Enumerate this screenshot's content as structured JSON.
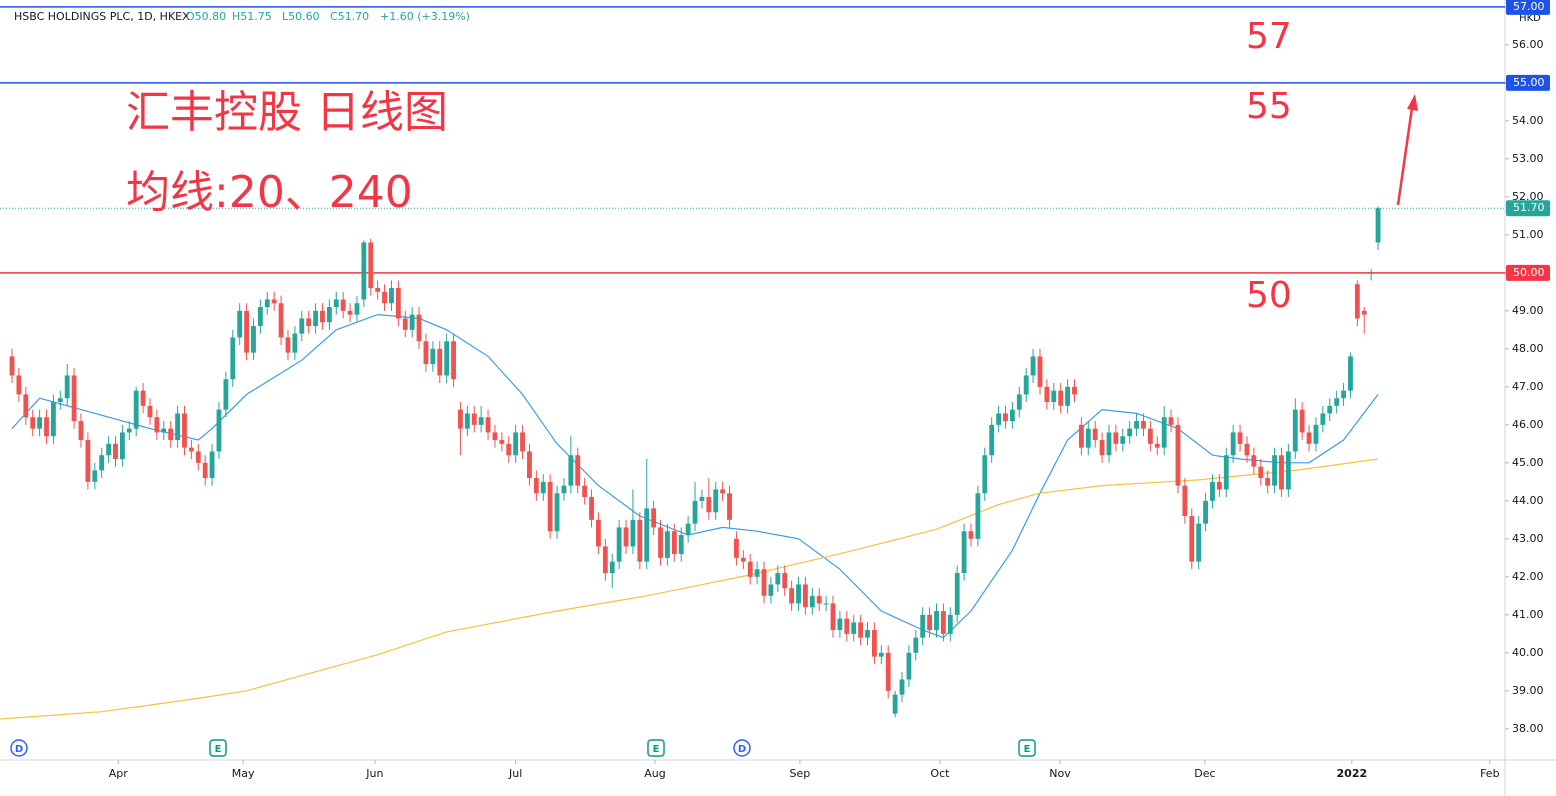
{
  "chart_data": {
    "type": "candlestick",
    "header": {
      "symbol": "HSBC HOLDINGS PLC, 1D, HKEX",
      "open": "O50.80",
      "high": "H51.75",
      "low": "L50.60",
      "close": "C51.70",
      "change": "+1.60 (+3.19%)"
    },
    "annotations": [
      "57",
      "55",
      "50",
      "汇丰控股 日线图",
      "均线:20、240"
    ],
    "currency": "HKD",
    "up_color": "#26a69a",
    "down_color": "#ef5350",
    "xlim": [
      -1.74,
      216.4
    ],
    "ylim": [
      37.18,
      57.18
    ],
    "yticks": [
      {
        "value": 38,
        "label": "38.00"
      },
      {
        "value": 39,
        "label": "39.00"
      },
      {
        "value": 40,
        "label": "40.00"
      },
      {
        "value": 41,
        "label": "41.00"
      },
      {
        "value": 42,
        "label": "42.00"
      },
      {
        "value": 43,
        "label": "43.00"
      },
      {
        "value": 44,
        "label": "44.00"
      },
      {
        "value": 45,
        "label": "45.00"
      },
      {
        "value": 46,
        "label": "46.00"
      },
      {
        "value": 47,
        "label": "47.00"
      },
      {
        "value": 48,
        "label": "48.00"
      },
      {
        "value": 49,
        "label": "49.00"
      },
      {
        "value": 50,
        "label": "50.00"
      },
      {
        "value": 51,
        "label": "51.00"
      },
      {
        "value": 52,
        "label": "52.00"
      },
      {
        "value": 53,
        "label": "53.00"
      },
      {
        "value": 54,
        "label": "54.00"
      },
      {
        "value": 55,
        "label": "55.00"
      },
      {
        "value": 56,
        "label": "56.00"
      }
    ],
    "xticks": [
      {
        "value": 15.4,
        "label": "Apr"
      },
      {
        "value": 33.5,
        "label": "May"
      },
      {
        "value": 52.6,
        "label": "Jun"
      },
      {
        "value": 73.0,
        "label": "Jul"
      },
      {
        "value": 93.2,
        "label": "Aug"
      },
      {
        "value": 114.2,
        "label": "Sep"
      },
      {
        "value": 134.5,
        "label": "Oct"
      },
      {
        "value": 151.9,
        "label": "Nov"
      },
      {
        "value": 172.9,
        "label": "Dec"
      },
      {
        "value": 194.2,
        "label": "2022"
      },
      {
        "value": 214.2,
        "label": "Feb"
      }
    ],
    "hlines": [
      {
        "value": 57,
        "label": "57.00",
        "color": "#1e53e5"
      },
      {
        "value": 55,
        "label": "55.00",
        "color": "#1e53e5"
      },
      {
        "value": 50,
        "label": "50.00",
        "color": "#f23645"
      }
    ],
    "last_price": {
      "value": 51.7,
      "label": "51.70",
      "color": "#26a69a"
    },
    "events": [
      "D",
      "E",
      "E",
      "D",
      "E"
    ],
    "series": [
      {
        "name": "MA20",
        "color": "#3d9be9",
        "x": [
          0,
          4,
          10,
          20,
          27,
          29,
          34,
          42,
          47,
          53,
          59,
          63,
          69,
          74,
          79,
          85,
          91,
          98,
          103,
          108,
          114,
          120,
          126,
          132,
          135,
          139,
          145,
          149,
          153,
          158,
          163,
          169,
          174,
          178,
          184,
          188,
          193,
          198
        ],
        "values": [
          45.9,
          46.7,
          46.4,
          45.9,
          45.6,
          45.9,
          46.8,
          47.7,
          48.5,
          48.9,
          48.8,
          48.5,
          47.8,
          46.8,
          45.5,
          44.4,
          43.6,
          43.1,
          43.3,
          43.2,
          43.0,
          42.2,
          41.1,
          40.6,
          40.4,
          41.1,
          42.7,
          44.2,
          45.6,
          46.4,
          46.3,
          45.9,
          45.2,
          45.1,
          45.0,
          45.0,
          45.6,
          46.8
        ]
      },
      {
        "name": "MA240",
        "color": "#f5c242",
        "x": [
          -1.7,
          13,
          27,
          34,
          42,
          53,
          63,
          79,
          92,
          107,
          121,
          134,
          143,
          149,
          158,
          172,
          186,
          198
        ],
        "values": [
          38.26,
          38.45,
          38.8,
          39.0,
          39.4,
          39.95,
          40.55,
          41.1,
          41.5,
          42.05,
          42.65,
          43.25,
          43.9,
          44.2,
          44.4,
          44.55,
          44.8,
          45.1
        ]
      }
    ],
    "candles": [
      [
        47.8,
        48.0,
        47.1,
        47.3
      ],
      [
        47.3,
        47.5,
        46.6,
        46.8
      ],
      [
        46.8,
        47.0,
        46.0,
        46.2
      ],
      [
        46.2,
        46.4,
        45.7,
        45.9
      ],
      [
        45.9,
        46.4,
        45.7,
        46.2
      ],
      [
        46.2,
        46.4,
        45.5,
        45.7
      ],
      [
        45.7,
        46.8,
        45.5,
        46.6
      ],
      [
        46.6,
        46.9,
        46.4,
        46.7
      ],
      [
        46.7,
        47.6,
        46.5,
        47.3
      ],
      [
        47.3,
        47.5,
        45.9,
        46.1
      ],
      [
        46.1,
        46.3,
        45.4,
        45.6
      ],
      [
        45.6,
        45.8,
        44.3,
        44.5
      ],
      [
        44.5,
        45.0,
        44.3,
        44.8
      ],
      [
        44.8,
        45.4,
        44.6,
        45.2
      ],
      [
        45.2,
        45.7,
        45.0,
        45.5
      ],
      [
        45.5,
        45.7,
        44.9,
        45.1
      ],
      [
        45.1,
        46.0,
        44.9,
        45.8
      ],
      [
        45.8,
        46.1,
        45.6,
        45.9
      ],
      [
        45.9,
        47.0,
        45.7,
        46.9
      ],
      [
        46.9,
        47.1,
        46.3,
        46.5
      ],
      [
        46.5,
        46.7,
        46.0,
        46.2
      ],
      [
        46.2,
        46.4,
        45.6,
        45.8
      ],
      [
        45.8,
        46.1,
        45.6,
        45.9
      ],
      [
        45.9,
        46.1,
        45.4,
        45.6
      ],
      [
        45.6,
        46.5,
        45.4,
        46.3
      ],
      [
        46.3,
        46.5,
        45.2,
        45.4
      ],
      [
        45.4,
        45.6,
        45.1,
        45.3
      ],
      [
        45.3,
        45.5,
        44.8,
        45.0
      ],
      [
        45.0,
        45.2,
        44.4,
        44.6
      ],
      [
        44.6,
        45.5,
        44.4,
        45.3
      ],
      [
        45.3,
        46.6,
        45.1,
        46.4
      ],
      [
        46.4,
        47.4,
        46.2,
        47.2
      ],
      [
        47.2,
        48.5,
        47.0,
        48.3
      ],
      [
        48.3,
        49.2,
        48.1,
        49.0
      ],
      [
        49.0,
        49.2,
        47.7,
        47.9
      ],
      [
        47.9,
        48.8,
        47.7,
        48.6
      ],
      [
        48.6,
        49.3,
        48.4,
        49.1
      ],
      [
        49.1,
        49.5,
        48.9,
        49.3
      ],
      [
        49.3,
        49.5,
        49.0,
        49.2
      ],
      [
        49.2,
        49.4,
        48.1,
        48.3
      ],
      [
        48.3,
        48.5,
        47.7,
        47.9
      ],
      [
        47.9,
        48.6,
        47.7,
        48.4
      ],
      [
        48.4,
        49.0,
        48.2,
        48.8
      ],
      [
        48.8,
        49.0,
        48.4,
        48.6
      ],
      [
        48.6,
        49.2,
        48.4,
        49.0
      ],
      [
        49.0,
        49.2,
        48.5,
        48.7
      ],
      [
        48.7,
        49.3,
        48.5,
        49.1
      ],
      [
        49.1,
        49.5,
        48.9,
        49.3
      ],
      [
        49.3,
        49.5,
        48.8,
        49.0
      ],
      [
        49.0,
        49.2,
        48.7,
        48.9
      ],
      [
        48.9,
        49.4,
        48.7,
        49.2
      ],
      [
        49.3,
        50.85,
        49.1,
        50.8
      ],
      [
        50.8,
        50.9,
        49.4,
        49.6
      ],
      [
        49.6,
        49.8,
        49.3,
        49.5
      ],
      [
        49.5,
        49.7,
        49.0,
        49.2
      ],
      [
        49.2,
        49.8,
        49.0,
        49.6
      ],
      [
        49.6,
        49.8,
        48.6,
        48.8
      ],
      [
        48.8,
        49.0,
        48.3,
        48.5
      ],
      [
        48.5,
        49.1,
        48.3,
        48.9
      ],
      [
        48.9,
        49.1,
        48.0,
        48.2
      ],
      [
        48.2,
        48.4,
        47.4,
        47.6
      ],
      [
        47.6,
        48.2,
        47.4,
        48.0
      ],
      [
        48.0,
        48.2,
        47.1,
        47.3
      ],
      [
        47.3,
        48.4,
        47.1,
        48.2
      ],
      [
        48.2,
        48.4,
        47.0,
        47.2
      ],
      [
        46.4,
        46.6,
        45.2,
        45.9
      ],
      [
        45.9,
        46.5,
        45.7,
        46.3
      ],
      [
        46.3,
        46.5,
        45.8,
        46.0
      ],
      [
        46.0,
        46.5,
        45.8,
        46.2
      ],
      [
        46.2,
        46.4,
        45.6,
        45.8
      ],
      [
        45.8,
        46.0,
        45.4,
        45.6
      ],
      [
        45.6,
        45.8,
        45.3,
        45.5
      ],
      [
        45.5,
        45.7,
        45.0,
        45.2
      ],
      [
        45.2,
        46.0,
        45.0,
        45.8
      ],
      [
        45.8,
        46.0,
        45.1,
        45.3
      ],
      [
        45.3,
        45.5,
        44.4,
        44.6
      ],
      [
        44.6,
        44.8,
        44.0,
        44.2
      ],
      [
        44.2,
        44.7,
        44.0,
        44.5
      ],
      [
        44.5,
        44.7,
        43.0,
        43.2
      ],
      [
        43.2,
        44.4,
        43.0,
        44.2
      ],
      [
        44.2,
        44.6,
        44.0,
        44.4
      ],
      [
        44.4,
        45.7,
        44.2,
        45.2
      ],
      [
        45.2,
        45.4,
        44.2,
        44.4
      ],
      [
        44.4,
        44.6,
        43.9,
        44.1
      ],
      [
        44.1,
        44.3,
        43.3,
        43.5
      ],
      [
        43.5,
        43.7,
        42.6,
        42.8
      ],
      [
        42.8,
        43.0,
        41.9,
        42.1
      ],
      [
        42.1,
        42.6,
        41.7,
        42.4
      ],
      [
        42.4,
        43.5,
        42.2,
        43.3
      ],
      [
        43.3,
        43.5,
        42.6,
        42.8
      ],
      [
        42.8,
        44.3,
        42.6,
        43.5
      ],
      [
        43.5,
        43.7,
        42.2,
        42.4
      ],
      [
        42.4,
        45.1,
        42.2,
        43.8
      ],
      [
        43.8,
        44.0,
        43.1,
        43.3
      ],
      [
        43.3,
        43.5,
        42.3,
        42.5
      ],
      [
        42.5,
        43.4,
        42.3,
        43.2
      ],
      [
        43.2,
        43.4,
        42.4,
        42.6
      ],
      [
        42.6,
        43.3,
        42.4,
        43.1
      ],
      [
        43.1,
        43.6,
        42.9,
        43.4
      ],
      [
        43.4,
        44.5,
        43.2,
        44.0
      ],
      [
        44.0,
        44.3,
        43.8,
        44.1
      ],
      [
        44.1,
        44.6,
        43.5,
        43.7
      ],
      [
        43.7,
        44.5,
        43.5,
        44.3
      ],
      [
        44.3,
        44.5,
        44.0,
        44.2
      ],
      [
        44.2,
        44.4,
        43.3,
        43.5
      ],
      [
        43.0,
        43.2,
        42.3,
        42.5
      ],
      [
        42.5,
        42.7,
        42.2,
        42.4
      ],
      [
        42.4,
        42.6,
        41.8,
        42.0
      ],
      [
        42.0,
        42.4,
        41.8,
        42.2
      ],
      [
        42.2,
        42.4,
        41.3,
        41.5
      ],
      [
        41.5,
        42.0,
        41.3,
        41.8
      ],
      [
        41.8,
        42.3,
        41.6,
        42.1
      ],
      [
        42.1,
        42.3,
        41.5,
        41.7
      ],
      [
        41.7,
        41.9,
        41.1,
        41.3
      ],
      [
        41.3,
        42.0,
        41.1,
        41.8
      ],
      [
        41.8,
        42.0,
        41.0,
        41.2
      ],
      [
        41.2,
        41.7,
        41.0,
        41.5
      ],
      [
        41.5,
        41.7,
        41.1,
        41.3
      ],
      [
        41.3,
        41.5,
        41.1,
        41.3
      ],
      [
        41.3,
        41.5,
        40.4,
        40.6
      ],
      [
        40.6,
        41.1,
        40.4,
        40.9
      ],
      [
        40.9,
        41.1,
        40.3,
        40.5
      ],
      [
        40.5,
        41.0,
        40.3,
        40.8
      ],
      [
        40.8,
        41.0,
        40.2,
        40.4
      ],
      [
        40.4,
        40.8,
        40.2,
        40.6
      ],
      [
        40.6,
        40.8,
        39.7,
        39.9
      ],
      [
        39.9,
        40.2,
        39.7,
        40.0
      ],
      [
        40.0,
        40.2,
        38.8,
        39.0
      ],
      [
        38.4,
        39.0,
        38.3,
        38.9
      ],
      [
        38.9,
        39.5,
        38.7,
        39.3
      ],
      [
        39.3,
        40.2,
        39.1,
        40.0
      ],
      [
        40.0,
        40.6,
        39.8,
        40.4
      ],
      [
        40.4,
        41.2,
        40.2,
        41.0
      ],
      [
        41.0,
        41.2,
        40.4,
        40.6
      ],
      [
        40.6,
        41.3,
        40.4,
        41.1
      ],
      [
        41.1,
        41.3,
        40.3,
        40.5
      ],
      [
        40.5,
        41.2,
        40.3,
        41.0
      ],
      [
        41.0,
        42.3,
        40.8,
        42.1
      ],
      [
        42.1,
        43.4,
        41.9,
        43.2
      ],
      [
        43.2,
        43.4,
        42.8,
        43.0
      ],
      [
        43.0,
        44.4,
        42.8,
        44.2
      ],
      [
        44.2,
        45.4,
        44.0,
        45.2
      ],
      [
        45.2,
        46.2,
        45.0,
        46.0
      ],
      [
        46.0,
        46.5,
        45.8,
        46.3
      ],
      [
        46.3,
        46.5,
        45.9,
        46.1
      ],
      [
        46.1,
        46.6,
        45.9,
        46.4
      ],
      [
        46.4,
        47.0,
        46.2,
        46.8
      ],
      [
        46.8,
        47.5,
        46.6,
        47.3
      ],
      [
        47.3,
        48.0,
        47.1,
        47.8
      ],
      [
        47.8,
        48.0,
        46.8,
        47.0
      ],
      [
        47.0,
        47.2,
        46.4,
        46.6
      ],
      [
        46.6,
        47.1,
        46.4,
        46.9
      ],
      [
        46.9,
        47.1,
        46.3,
        46.5
      ],
      [
        46.5,
        47.2,
        46.3,
        47.0
      ],
      [
        47.0,
        47.2,
        46.6,
        46.8
      ],
      [
        46.0,
        46.2,
        45.2,
        45.4
      ],
      [
        45.4,
        46.1,
        45.2,
        45.9
      ],
      [
        45.9,
        46.1,
        45.4,
        45.6
      ],
      [
        45.6,
        45.8,
        45.0,
        45.2
      ],
      [
        45.2,
        46.0,
        45.0,
        45.8
      ],
      [
        45.8,
        46.0,
        45.3,
        45.5
      ],
      [
        45.5,
        45.9,
        45.3,
        45.7
      ],
      [
        45.7,
        46.1,
        45.5,
        45.9
      ],
      [
        45.9,
        46.3,
        45.7,
        46.1
      ],
      [
        46.1,
        46.3,
        45.7,
        45.9
      ],
      [
        45.9,
        46.1,
        45.3,
        45.5
      ],
      [
        45.5,
        45.7,
        45.2,
        45.4
      ],
      [
        45.4,
        46.5,
        45.2,
        46.2
      ],
      [
        46.2,
        46.4,
        45.8,
        46.0
      ],
      [
        46.0,
        46.2,
        44.2,
        44.4
      ],
      [
        44.4,
        44.6,
        43.4,
        43.6
      ],
      [
        43.6,
        43.8,
        42.2,
        42.4
      ],
      [
        42.4,
        43.6,
        42.2,
        43.4
      ],
      [
        43.4,
        44.2,
        43.2,
        44.0
      ],
      [
        44.0,
        44.7,
        43.8,
        44.5
      ],
      [
        44.5,
        44.7,
        44.1,
        44.3
      ],
      [
        44.3,
        45.4,
        44.1,
        45.2
      ],
      [
        45.2,
        46.0,
        45.0,
        45.8
      ],
      [
        45.8,
        46.0,
        45.3,
        45.5
      ],
      [
        45.5,
        45.7,
        45.0,
        45.2
      ],
      [
        45.2,
        45.4,
        44.7,
        44.9
      ],
      [
        44.9,
        45.1,
        44.4,
        44.6
      ],
      [
        44.6,
        44.8,
        44.2,
        44.4
      ],
      [
        44.4,
        45.4,
        44.2,
        45.2
      ],
      [
        45.2,
        45.4,
        44.1,
        44.3
      ],
      [
        44.3,
        45.5,
        44.1,
        45.3
      ],
      [
        45.3,
        46.7,
        45.1,
        46.4
      ],
      [
        46.4,
        46.6,
        45.6,
        45.8
      ],
      [
        45.8,
        46.0,
        45.3,
        45.5
      ],
      [
        45.5,
        46.2,
        45.3,
        46.0
      ],
      [
        46.0,
        46.5,
        45.8,
        46.3
      ],
      [
        46.3,
        46.7,
        46.1,
        46.5
      ],
      [
        46.5,
        46.9,
        46.3,
        46.7
      ],
      [
        46.7,
        47.1,
        46.5,
        46.9
      ],
      [
        46.9,
        47.9,
        46.7,
        47.8
      ],
      [
        49.7,
        49.8,
        48.6,
        48.8
      ],
      [
        49.0,
        49.1,
        48.4,
        48.9
      ],
      [
        50.0,
        50.1,
        49.8,
        50.0
      ],
      [
        50.8,
        51.75,
        50.6,
        51.7
      ]
    ]
  }
}
